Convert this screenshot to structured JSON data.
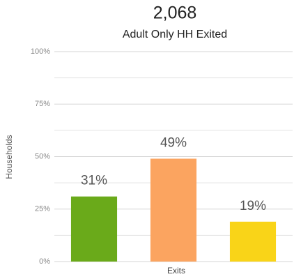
{
  "chart_data": {
    "type": "bar",
    "title": "2,068",
    "subtitle": "Adult Only HH Exited",
    "y_label": "Households",
    "x_label": "Exits",
    "categories": [
      null,
      null,
      null
    ],
    "values": [
      31,
      49,
      19
    ],
    "value_labels": [
      "31%",
      "49%",
      "19%"
    ],
    "colors": [
      "#6aaa1a",
      "#fba460",
      "#f9d418"
    ],
    "ylim": [
      0,
      100
    ],
    "yticks": [
      {
        "value": 0,
        "label": "0%"
      },
      {
        "value": 25,
        "label": "25%"
      },
      {
        "value": 50,
        "label": "50%"
      },
      {
        "value": 75,
        "label": "75%"
      },
      {
        "value": 100,
        "label": "100%"
      }
    ],
    "minor_yticks": [
      12.5,
      37.5,
      62.5,
      87.5
    ],
    "grid": true
  }
}
